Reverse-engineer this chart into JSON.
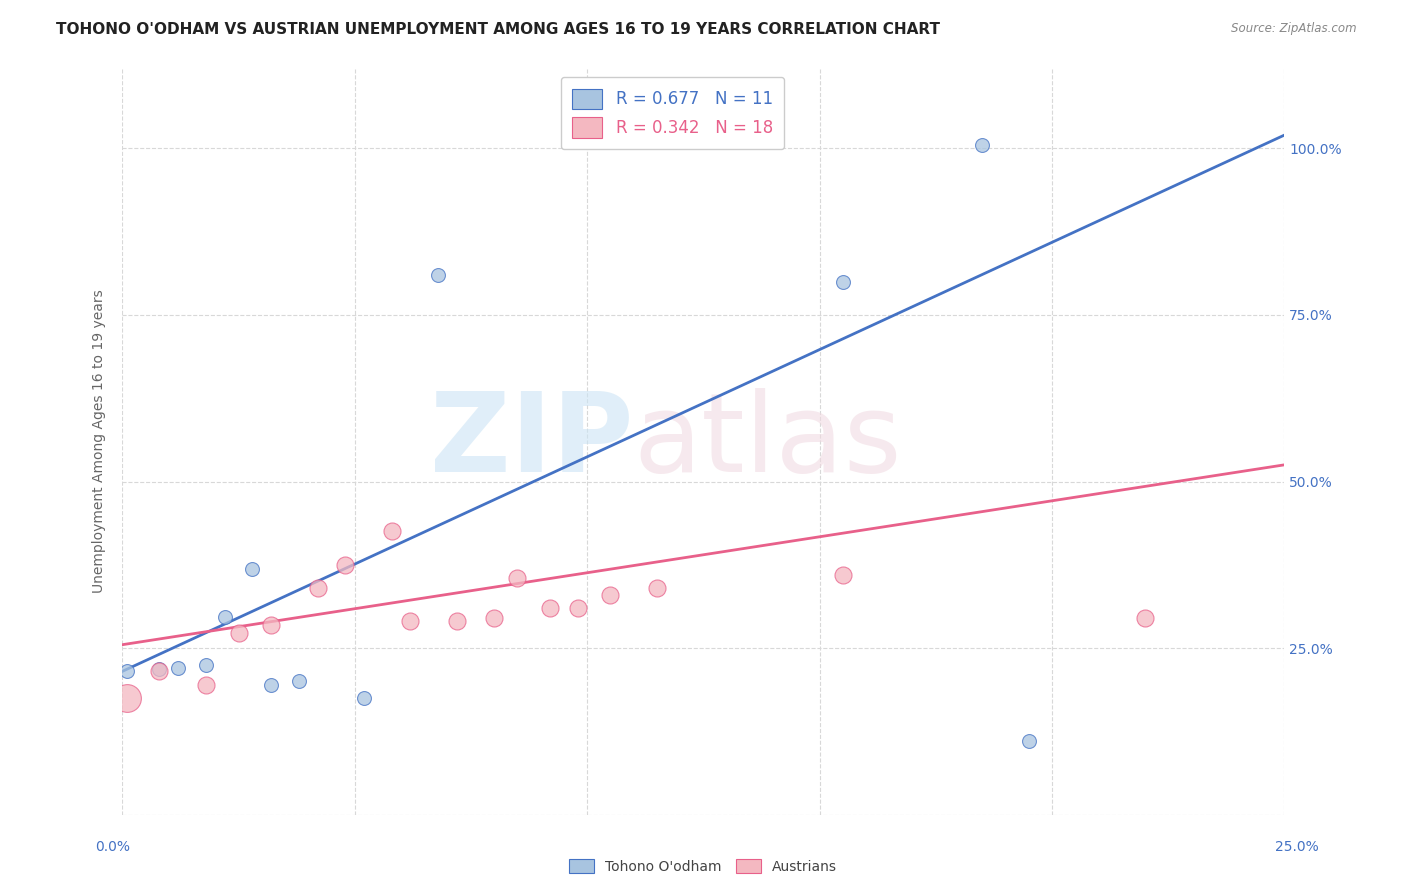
{
  "title": "TOHONO O'ODHAM VS AUSTRIAN UNEMPLOYMENT AMONG AGES 16 TO 19 YEARS CORRELATION CHART",
  "source": "Source: ZipAtlas.com",
  "ylabel": "Unemployment Among Ages 16 to 19 years",
  "xlim": [
    0.0,
    0.25
  ],
  "ylim": [
    0.0,
    1.12
  ],
  "yticks": [
    0.0,
    0.25,
    0.5,
    0.75,
    1.0
  ],
  "ytick_labels": [
    "",
    "25.0%",
    "50.0%",
    "75.0%",
    "100.0%"
  ],
  "blue_color": "#a8c4e0",
  "blue_line_color": "#4472c4",
  "pink_color": "#f4b8c1",
  "pink_line_color": "#e8608a",
  "tohono_x": [
    0.001,
    0.008,
    0.012,
    0.018,
    0.022,
    0.028,
    0.032,
    0.038,
    0.052,
    0.068,
    0.155,
    0.185,
    0.195
  ],
  "tohono_y": [
    0.215,
    0.218,
    0.22,
    0.224,
    0.296,
    0.368,
    0.195,
    0.2,
    0.175,
    0.81,
    0.8,
    1.005,
    0.11
  ],
  "austrian_x": [
    0.001,
    0.008,
    0.018,
    0.025,
    0.032,
    0.042,
    0.048,
    0.058,
    0.062,
    0.072,
    0.08,
    0.085,
    0.092,
    0.098,
    0.105,
    0.115,
    0.155,
    0.22
  ],
  "austrian_y": [
    0.175,
    0.215,
    0.195,
    0.272,
    0.285,
    0.34,
    0.375,
    0.425,
    0.29,
    0.29,
    0.295,
    0.355,
    0.31,
    0.31,
    0.33,
    0.34,
    0.36,
    0.295
  ],
  "blue_line_x": [
    0.0,
    0.25
  ],
  "blue_line_y": [
    0.215,
    1.02
  ],
  "pink_line_x": [
    0.0,
    0.25
  ],
  "pink_line_y": [
    0.255,
    0.525
  ],
  "background_color": "#ffffff",
  "grid_color": "#d8d8d8",
  "title_fontsize": 11,
  "axis_fontsize": 10,
  "tick_fontsize": 10,
  "marker_size_blue": 100,
  "marker_size_pink": 150,
  "marker_size_large_pink": 400
}
